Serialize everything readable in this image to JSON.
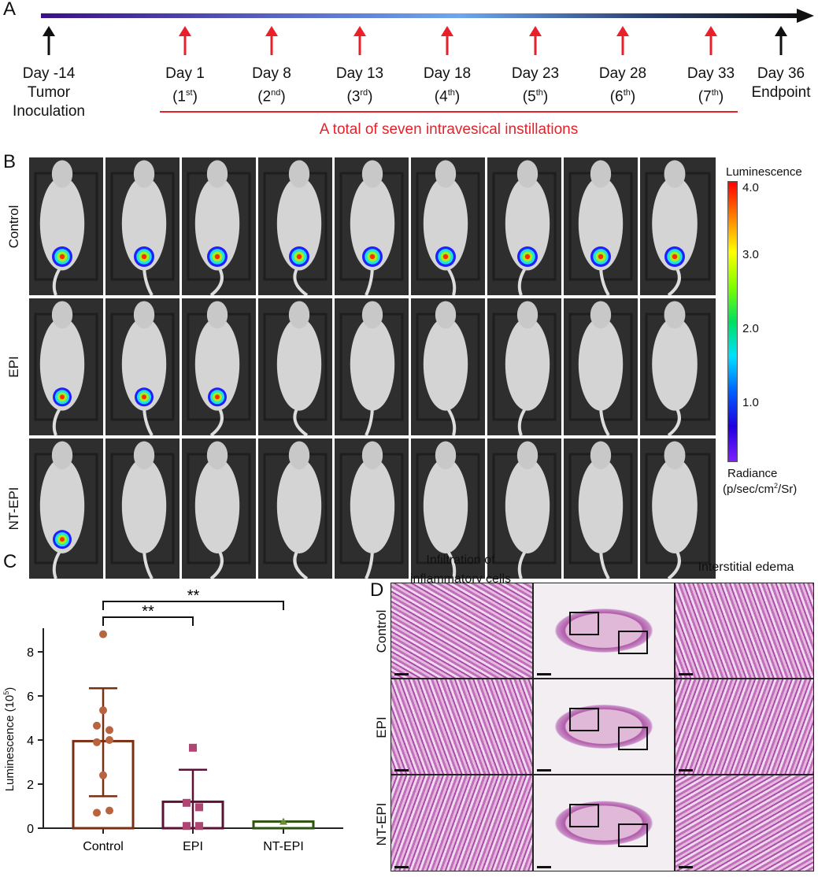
{
  "panels": {
    "a": "A",
    "b": "B",
    "c": "C",
    "d": "D"
  },
  "timeline": {
    "events": [
      {
        "day": "Day -14",
        "sub1": "Tumor",
        "sub2": "Inoculation",
        "color": "black"
      },
      {
        "day": "Day 1",
        "ord": "1",
        "sup": "st",
        "color": "red"
      },
      {
        "day": "Day 8",
        "ord": "2",
        "sup": "nd",
        "color": "red"
      },
      {
        "day": "Day 13",
        "ord": "3",
        "sup": "rd",
        "color": "red"
      },
      {
        "day": "Day 18",
        "ord": "4",
        "sup": "th",
        "color": "red"
      },
      {
        "day": "Day 23",
        "ord": "5",
        "sup": "th",
        "color": "red"
      },
      {
        "day": "Day 28",
        "ord": "6",
        "sup": "th",
        "color": "red"
      },
      {
        "day": "Day 33",
        "ord": "7",
        "sup": "th",
        "color": "red"
      },
      {
        "day": "Day 36",
        "sub1": "Endpoint",
        "color": "black"
      }
    ],
    "bracket_label": "A total of seven intravesical instillations",
    "red": "#e8202a"
  },
  "imaging": {
    "rows": [
      "Control",
      "EPI",
      "NT-EPI"
    ],
    "signal_counts": [
      9,
      3,
      1
    ],
    "colorbar": {
      "title": "Luminescence",
      "ticks": [
        "4.0",
        "3.0",
        "2.0",
        "1.0"
      ],
      "unit1": "Radiance",
      "unit2": "(p/sec/cm",
      "unit_sup": "2",
      "unit3": "/Sr)"
    }
  },
  "histology": {
    "col_titles": [
      "Infiltration of",
      "inflammatory cells",
      "Interstitial edema"
    ],
    "rows": [
      "Control",
      "EPI",
      "NT-EPI"
    ]
  },
  "chart_data": {
    "type": "bar",
    "categories": [
      "Control",
      "EPI",
      "NT-EPI"
    ],
    "values": [
      3.95,
      1.2,
      0.3
    ],
    "error_upper": [
      6.35,
      2.65,
      0.3
    ],
    "error_lower": [
      1.45,
      0.0,
      0.3
    ],
    "points": [
      [
        8.8,
        5.35,
        4.65,
        4.45,
        3.9,
        4.0,
        2.4,
        0.7,
        0.8
      ],
      [
        3.65,
        1.15,
        0.95,
        0.1,
        0.1
      ],
      [
        0.3
      ]
    ],
    "marker": [
      "circle",
      "square",
      "triangle"
    ],
    "colors": {
      "bar": [
        "#7a2e12",
        "#5c1237",
        "#2f5213"
      ],
      "point": [
        "#b8643f",
        "#b04574",
        "#6b8d3a"
      ]
    },
    "ylabel": "Luminescence (10",
    "ylabel_sup": "5",
    "ylabel_end": ")",
    "yticks": [
      "0",
      "2",
      "4",
      "6",
      "8"
    ],
    "ylim": [
      0,
      9
    ],
    "significance": [
      {
        "from": "Control",
        "to": "EPI",
        "label": "**"
      },
      {
        "from": "Control",
        "to": "NT-EPI",
        "label": "**"
      }
    ]
  }
}
